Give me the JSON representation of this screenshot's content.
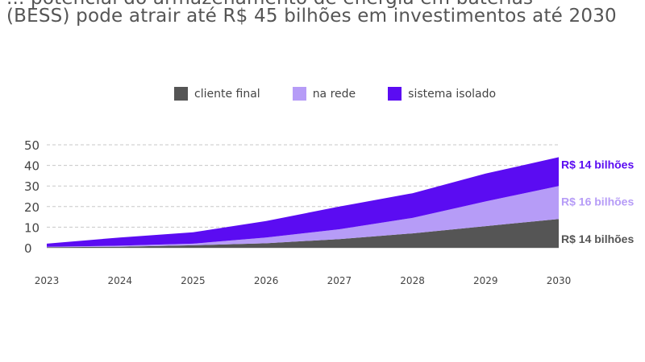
{
  "title_lines": [
    "... potencial do armazenamento de energia em baterias",
    "(BESS) pode atrair até R$ 45 bilhões em investimentos até 2030"
  ],
  "chart_data": {
    "type": "area",
    "stacked": true,
    "title": "(BESS) pode atrair até R$ 45 bilhões em investimentos até 2030",
    "x": [
      "2023",
      "2024",
      "2025",
      "2026",
      "2027",
      "2028",
      "2029",
      "2030"
    ],
    "ylim": [
      0,
      50
    ],
    "yticks": [
      0,
      10,
      20,
      30,
      40,
      50
    ],
    "grid": true,
    "legend_position": "top-center",
    "series": [
      {
        "name": "cliente final",
        "color": "#555555",
        "values": [
          0.3,
          0.5,
          1.2,
          2.2,
          4.2,
          7,
          10.5,
          14
        ]
      },
      {
        "name": "na rede",
        "color": "#b69cf7",
        "values": [
          0.2,
          0.5,
          0.8,
          2.8,
          4.8,
          7.5,
          12,
          16
        ]
      },
      {
        "name": "sistema isolado",
        "color": "#5b0cf2",
        "values": [
          1.5,
          4,
          5.5,
          8,
          11,
          12,
          13.5,
          14
        ]
      }
    ],
    "end_labels": [
      {
        "text": "R$ 14 bilhões",
        "series": "sistema isolado",
        "color": "#5b0cf2"
      },
      {
        "text": "R$ 16 bilhões",
        "series": "na rede",
        "color": "#b69cf7"
      },
      {
        "text": "R$ 14 bilhões",
        "series": "cliente final",
        "color": "#555555"
      }
    ]
  }
}
